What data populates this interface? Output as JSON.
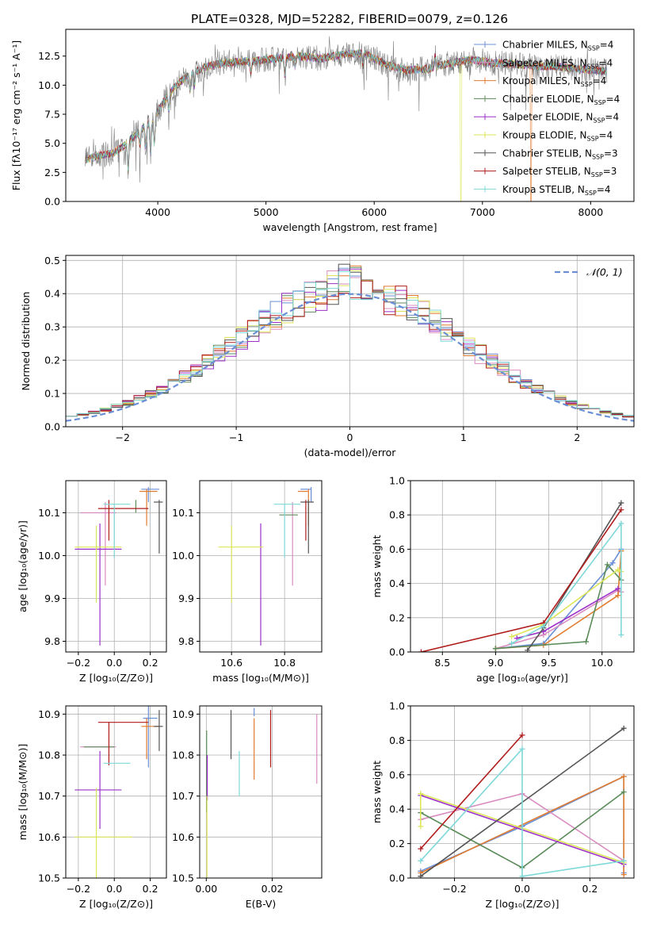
{
  "figure": {
    "title": "PLATE=0328, MJD=52282, FIBERID=0079, z=0.126"
  },
  "palette": {
    "Chabrier MILES": "#6b8fd6",
    "Salpeter MILES": "#d98cc0",
    "Kroupa MILES": "#e07b30",
    "Chabrier ELODIE": "#5b8c5a",
    "Salpeter ELODIE": "#9b30c8",
    "Kroupa ELODIE": "#dde55a",
    "Chabrier STELIB": "#555555",
    "Salpeter STELIB": "#b01c1c",
    "Kroupa STELIB": "#7fd8d8"
  },
  "chart_data": [
    {
      "id": "spectrum",
      "type": "line",
      "xlabel": "wavelength [Angstrom, rest frame]",
      "ylabel": "Flux [fλ10⁻¹⁷ erg cm⁻² s⁻¹ A⁻¹]",
      "xlim": [
        3150,
        8400
      ],
      "ylim": [
        0,
        14.8
      ],
      "xticks": [
        4000,
        5000,
        6000,
        7000,
        8000
      ],
      "yticks": [
        0.0,
        2.5,
        5.0,
        7.5,
        10.0,
        12.5
      ],
      "data_color": "#808080",
      "continuum": {
        "x": [
          3330,
          3450,
          3600,
          3700,
          3850,
          3950,
          4050,
          4150,
          4300,
          4450,
          4600,
          4750,
          4900,
          5100,
          5300,
          5500,
          5700,
          5900,
          6100,
          6300,
          6500,
          6700,
          6900,
          7100,
          7300,
          7500,
          7700,
          7900,
          8150
        ],
        "y": [
          3.6,
          3.9,
          4.2,
          4.9,
          6.2,
          7.0,
          8.5,
          9.8,
          11.0,
          11.6,
          11.9,
          12.0,
          12.1,
          12.3,
          12.5,
          12.3,
          12.6,
          12.8,
          11.8,
          11.3,
          11.4,
          11.9,
          12.2,
          11.9,
          11.8,
          11.6,
          11.6,
          11.4,
          11.2
        ]
      },
      "legend": [
        {
          "label": "Chabrier MILES, N",
          "nssp": 4
        },
        {
          "label": "Salpeter MILES, N",
          "nssp": 4
        },
        {
          "label": "Kroupa MILES, N",
          "nssp": 4
        },
        {
          "label": "Chabrier ELODIE, N",
          "nssp": 4
        },
        {
          "label": "Salpeter ELODIE, N",
          "nssp": 4
        },
        {
          "label": "Kroupa ELODIE, N",
          "nssp": 4
        },
        {
          "label": "Chabrier STELIB, N",
          "nssp": 3
        },
        {
          "label": "Salpeter STELIB, N",
          "nssp": 3
        },
        {
          "label": "Kroupa STELIB, N",
          "nssp": 4
        }
      ],
      "legend_sub": "SSP",
      "legend_placement": "right"
    },
    {
      "id": "residuals",
      "type": "histogram",
      "xlabel": "(data-model)/error",
      "ylabel": "Normed distribution",
      "xlim": [
        -2.5,
        2.5
      ],
      "ylim": [
        0,
        0.515
      ],
      "xticks": [
        -2,
        -1,
        0,
        1,
        2
      ],
      "yticks": [
        0.0,
        0.1,
        0.2,
        0.3,
        0.4,
        0.5
      ],
      "grid": true,
      "bin_width": 0.1,
      "gaussian_label": "𝒩(0, 1)",
      "legend_placement": "top-right"
    },
    {
      "id": "age-vs-Z",
      "type": "errorbar",
      "xlabel": "Z [log₁₀(Z/Z⊙)]",
      "ylabel": "age  [log₁₀(age/yr)]",
      "xlim": [
        -0.27,
        0.29
      ],
      "ylim": [
        9.775,
        10.175
      ],
      "xticks": [
        -0.2,
        0.0,
        0.2
      ],
      "yticks": [
        9.8,
        9.9,
        10.0,
        10.1
      ],
      "grid": true,
      "points": [
        {
          "model": "Chabrier MILES",
          "x": 0.19,
          "xerr": [
            0.04,
            0.06
          ],
          "y": 10.155,
          "yerr": [
            0.03,
            0.005
          ]
        },
        {
          "model": "Salpeter MILES",
          "x": -0.05,
          "xerr": [
            0.14,
            0.06
          ],
          "y": 10.1,
          "yerr": [
            0.17,
            0.025
          ]
        },
        {
          "model": "Kroupa MILES",
          "x": 0.18,
          "xerr": [
            0.04,
            0.06
          ],
          "y": 10.15,
          "yerr": [
            0.08,
            0.005
          ]
        },
        {
          "model": "Chabrier ELODIE",
          "x": 0.12,
          "xerr": [
            0.0,
            0.0
          ],
          "y": 10.1,
          "yerr": [
            0.0,
            0.03
          ]
        },
        {
          "model": "Salpeter ELODIE",
          "x": -0.08,
          "xerr": [
            0.14,
            0.12
          ],
          "y": 10.015,
          "yerr": [
            0.225,
            0.06
          ]
        },
        {
          "model": "Kroupa ELODIE",
          "x": -0.1,
          "xerr": [
            0.12,
            0.14
          ],
          "y": 10.02,
          "yerr": [
            0.13,
            0.05
          ]
        },
        {
          "model": "Chabrier STELIB",
          "x": 0.25,
          "xerr": [
            0.03,
            0.02
          ],
          "y": 10.125,
          "yerr": [
            0.12,
            0.005
          ]
        },
        {
          "model": "Salpeter STELIB",
          "x": -0.03,
          "xerr": [
            0.06,
            0.22
          ],
          "y": 10.11,
          "yerr": [
            0.075,
            0.02
          ]
        },
        {
          "model": "Kroupa STELIB",
          "x": 0.0,
          "xerr": [
            0.06,
            0.09
          ],
          "y": 10.12,
          "yerr": [
            0.125,
            0.0
          ]
        }
      ]
    },
    {
      "id": "age-vs-mass",
      "type": "errorbar",
      "xlabel": "mass [log₁₀(M/M⊙)]",
      "ylabel": "",
      "xlim": [
        10.48,
        10.94
      ],
      "ylim": [
        9.775,
        10.175
      ],
      "xticks": [
        10.6,
        10.8
      ],
      "yticks": [
        9.8,
        9.9,
        10.0,
        10.1
      ],
      "grid": true,
      "points": [
        {
          "model": "Chabrier MILES",
          "x": 10.9,
          "xerr": [
            0.04,
            0.0
          ],
          "y": 10.155,
          "yerr": [
            0.03,
            0.005
          ]
        },
        {
          "model": "Salpeter MILES",
          "x": 10.83,
          "xerr": [
            0.0,
            0.0
          ],
          "y": 10.1,
          "yerr": [
            0.17,
            0.025
          ]
        },
        {
          "model": "Kroupa MILES",
          "x": 10.89,
          "xerr": [
            0.04,
            0.0
          ],
          "y": 10.15,
          "yerr": [
            0.08,
            0.005
          ]
        },
        {
          "model": "Chabrier ELODIE",
          "x": 10.84,
          "xerr": [
            0.06,
            0.01
          ],
          "y": 10.095,
          "yerr": [
            0.0,
            0.0
          ]
        },
        {
          "model": "Salpeter ELODIE",
          "x": 10.71,
          "xerr": [
            0.0,
            0.0
          ],
          "y": 10.015,
          "yerr": [
            0.225,
            0.06
          ]
        },
        {
          "model": "Kroupa ELODIE",
          "x": 10.6,
          "xerr": [
            0.05,
            0.12
          ],
          "y": 10.02,
          "yerr": [
            0.13,
            0.05
          ]
        },
        {
          "model": "Chabrier STELIB",
          "x": 10.89,
          "xerr": [
            0.03,
            0.02
          ],
          "y": 10.125,
          "yerr": [
            0.12,
            0.005
          ]
        },
        {
          "model": "Salpeter STELIB",
          "x": 10.88,
          "xerr": [
            0.0,
            0.0
          ],
          "y": 10.11,
          "yerr": [
            0.075,
            0.02
          ]
        },
        {
          "model": "Kroupa STELIB",
          "x": 10.8,
          "xerr": [
            0.04,
            0.06
          ],
          "y": 10.12,
          "yerr": [
            0.125,
            0.0
          ]
        }
      ]
    },
    {
      "id": "weight-vs-age",
      "type": "line",
      "xlabel": "age  [log₁₀(age/yr)]",
      "ylabel": "mass weight",
      "xlim": [
        8.2,
        10.3
      ],
      "ylim": [
        0,
        1.0
      ],
      "xticks": [
        8.5,
        9.0,
        9.5,
        10.0
      ],
      "yticks": [
        0.0,
        0.2,
        0.4,
        0.6,
        0.8,
        1.0
      ],
      "grid": true,
      "series": [
        {
          "model": "Chabrier MILES",
          "x": [
            9.0,
            9.45,
            10.1,
            10.18
          ],
          "y": [
            0.02,
            0.05,
            0.52,
            0.6
          ]
        },
        {
          "model": "Salpeter MILES",
          "x": [
            9.0,
            9.45,
            10.15,
            10.18
          ],
          "y": [
            0.02,
            0.1,
            0.36,
            0.35
          ]
        },
        {
          "model": "Kroupa MILES",
          "x": [
            9.0,
            9.45,
            10.15,
            10.18
          ],
          "y": [
            0.02,
            0.04,
            0.33,
            0.59
          ]
        },
        {
          "model": "Chabrier ELODIE",
          "x": [
            9.0,
            9.85,
            10.05,
            10.18
          ],
          "y": [
            0.02,
            0.06,
            0.51,
            0.42
          ]
        },
        {
          "model": "Salpeter ELODIE",
          "x": [
            9.2,
            9.45,
            10.15
          ],
          "y": [
            0.08,
            0.12,
            0.37
          ]
        },
        {
          "model": "Kroupa ELODIE",
          "x": [
            9.15,
            9.45,
            10.15,
            10.18
          ],
          "y": [
            0.09,
            0.16,
            0.48,
            0.47
          ]
        },
        {
          "model": "Chabrier STELIB",
          "x": [
            9.3,
            9.45,
            10.18
          ],
          "y": [
            0.01,
            0.14,
            0.87
          ]
        },
        {
          "model": "Salpeter STELIB",
          "x": [
            8.3,
            9.45,
            10.18
          ],
          "y": [
            0.0,
            0.17,
            0.83
          ]
        },
        {
          "model": "Kroupa STELIB",
          "x": [
            9.15,
            9.45,
            10.18,
            10.18
          ],
          "y": [
            0.05,
            0.15,
            0.75,
            0.1
          ]
        }
      ]
    },
    {
      "id": "mass-vs-Z",
      "type": "errorbar",
      "xlabel": "Z [log₁₀(Z/Z⊙)]",
      "ylabel": "mass [log₁₀(M/M⊙)]",
      "xlim": [
        -0.27,
        0.29
      ],
      "ylim": [
        10.5,
        10.92
      ],
      "xticks": [
        -0.2,
        0.0,
        0.2
      ],
      "yticks": [
        10.5,
        10.6,
        10.7,
        10.8,
        10.9
      ],
      "grid": true,
      "points": [
        {
          "model": "Chabrier MILES",
          "x": 0.19,
          "xerr": [
            0.03,
            0.05
          ],
          "y": 10.89,
          "yerr": [
            0.12,
            0.03
          ]
        },
        {
          "model": "Salpeter MILES",
          "x": -0.05,
          "xerr": [
            0.14,
            0.06
          ],
          "y": 10.82,
          "yerr": [
            0.0,
            0.0
          ]
        },
        {
          "model": "Kroupa MILES",
          "x": 0.18,
          "xerr": [
            0.03,
            0.07
          ],
          "y": 10.87,
          "yerr": [
            0.08,
            0.02
          ]
        },
        {
          "model": "Chabrier ELODIE",
          "x": 0.0,
          "xerr": [
            0.17,
            0.0
          ],
          "y": 10.82,
          "yerr": [
            0.0,
            0.0
          ]
        },
        {
          "model": "Salpeter ELODIE",
          "x": -0.08,
          "xerr": [
            0.14,
            0.12
          ],
          "y": 10.715,
          "yerr": [
            0.095,
            0.095
          ]
        },
        {
          "model": "Kroupa ELODIE",
          "x": -0.1,
          "xerr": [
            0.12,
            0.2
          ],
          "y": 10.6,
          "yerr": [
            0.1,
            0.12
          ]
        },
        {
          "model": "Chabrier STELIB",
          "x": 0.25,
          "xerr": [
            0.03,
            0.02
          ],
          "y": 10.87,
          "yerr": [
            0.06,
            0.04
          ]
        },
        {
          "model": "Salpeter STELIB",
          "x": -0.03,
          "xerr": [
            0.06,
            0.22
          ],
          "y": 10.88,
          "yerr": [
            0.105,
            0.0
          ]
        },
        {
          "model": "Kroupa STELIB",
          "x": 0.0,
          "xerr": [
            0.06,
            0.09
          ],
          "y": 10.78,
          "yerr": [
            0.0,
            0.0
          ]
        }
      ]
    },
    {
      "id": "mass-vs-ebv",
      "type": "errorbar",
      "xlabel": "E(B-V)",
      "ylabel": "",
      "xlim": [
        -0.002,
        0.035
      ],
      "ylim": [
        10.5,
        10.92
      ],
      "xticks": [
        0.0,
        0.02
      ],
      "yticks": [
        10.5,
        10.6,
        10.7,
        10.8,
        10.9
      ],
      "grid": true,
      "points": [
        {
          "model": "Chabrier MILES",
          "x": 0.0145,
          "xerr": [
            0,
            0
          ],
          "y": 10.895,
          "yerr": [
            0.0,
            0.02
          ]
        },
        {
          "model": "Salpeter MILES",
          "x": 0.0335,
          "xerr": [
            0,
            0
          ],
          "y": 10.82,
          "yerr": [
            0.09,
            0.08
          ]
        },
        {
          "model": "Kroupa MILES",
          "x": 0.0145,
          "xerr": [
            0,
            0
          ],
          "y": 10.82,
          "yerr": [
            0.08,
            0.07
          ]
        },
        {
          "model": "Chabrier ELODIE",
          "x": 0.0001,
          "xerr": [
            0,
            0
          ],
          "y": 10.76,
          "yerr": [
            0.1,
            0.1
          ]
        },
        {
          "model": "Salpeter ELODIE",
          "x": 0.0003,
          "xerr": [
            0,
            0
          ],
          "y": 10.77,
          "yerr": [
            0.08,
            0.03
          ]
        },
        {
          "model": "Kroupa ELODIE",
          "x": 0.0002,
          "xerr": [
            0,
            0
          ],
          "y": 10.6,
          "yerr": [
            0.1,
            0.1
          ]
        },
        {
          "model": "Chabrier STELIB",
          "x": 0.0075,
          "xerr": [
            0,
            0
          ],
          "y": 10.85,
          "yerr": [
            0.06,
            0.06
          ]
        },
        {
          "model": "Salpeter STELIB",
          "x": 0.0195,
          "xerr": [
            0,
            0
          ],
          "y": 10.85,
          "yerr": [
            0.08,
            0.06
          ]
        },
        {
          "model": "Kroupa STELIB",
          "x": 0.01,
          "xerr": [
            0,
            0
          ],
          "y": 10.75,
          "yerr": [
            0.05,
            0.06
          ]
        }
      ]
    },
    {
      "id": "weight-vs-Z",
      "type": "line",
      "xlabel": "Z [log₁₀(Z/Z⊙)]",
      "ylabel": "mass weight",
      "xlim": [
        -0.33,
        0.33
      ],
      "ylim": [
        0,
        1.0
      ],
      "xticks": [
        -0.2,
        0.0,
        0.2
      ],
      "yticks": [
        0.0,
        0.2,
        0.4,
        0.6,
        0.8,
        1.0
      ],
      "grid": true,
      "series": [
        {
          "model": "Chabrier MILES",
          "x": [
            -0.3,
            0.0,
            0.3,
            0.3
          ],
          "y": [
            0.04,
            0.3,
            0.59,
            0.03
          ]
        },
        {
          "model": "Salpeter MILES",
          "x": [
            -0.3,
            0.0,
            0.3
          ],
          "y": [
            0.34,
            0.49,
            0.1
          ]
        },
        {
          "model": "Kroupa MILES",
          "x": [
            -0.3,
            0.3,
            0.3
          ],
          "y": [
            0.03,
            0.59,
            0.02
          ]
        },
        {
          "model": "Chabrier ELODIE",
          "x": [
            -0.3,
            0.0,
            0.3
          ],
          "y": [
            0.38,
            0.06,
            0.5
          ]
        },
        {
          "model": "Salpeter ELODIE",
          "x": [
            -0.3,
            0.3
          ],
          "y": [
            0.48,
            0.08
          ]
        },
        {
          "model": "Kroupa ELODIE",
          "x": [
            -0.3,
            -0.3,
            0.3
          ],
          "y": [
            0.3,
            0.49,
            0.09
          ]
        },
        {
          "model": "Chabrier STELIB",
          "x": [
            -0.3,
            0.3
          ],
          "y": [
            0.01,
            0.87
          ]
        },
        {
          "model": "Salpeter STELIB",
          "x": [
            -0.3,
            0.0
          ],
          "y": [
            0.17,
            0.83
          ]
        },
        {
          "model": "Kroupa STELIB",
          "x": [
            -0.3,
            0.0,
            0.0,
            0.3
          ],
          "y": [
            0.1,
            0.75,
            0.01,
            0.1
          ]
        }
      ]
    }
  ]
}
